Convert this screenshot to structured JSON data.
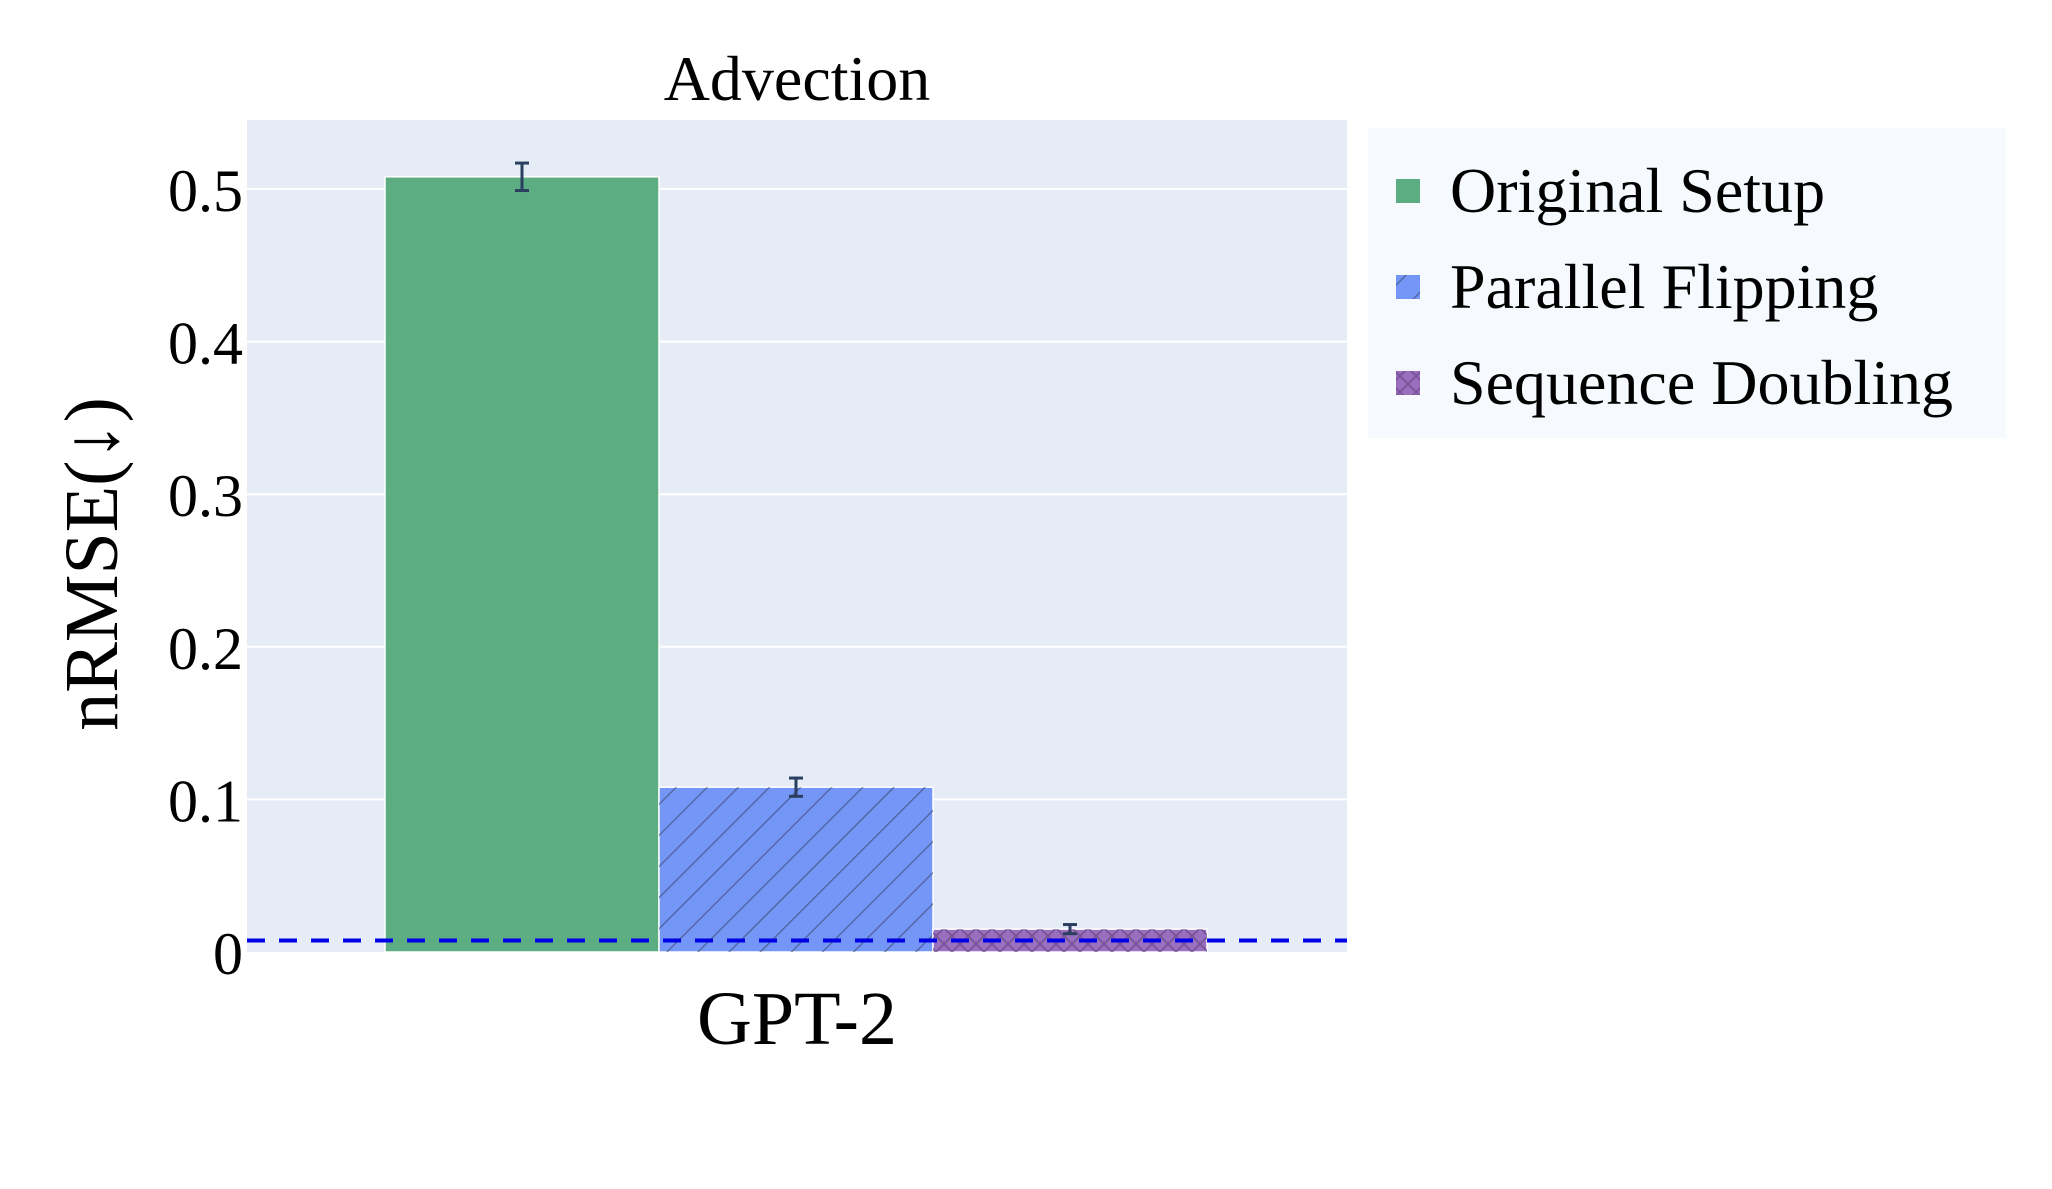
{
  "chart_data": {
    "type": "bar",
    "title": "Advection",
    "xlabel": "",
    "ylabel": "nRMSE(↓)",
    "categories": [
      "GPT-2"
    ],
    "ylim": [
      0,
      0.545
    ],
    "yticks": [
      0,
      0.1,
      0.2,
      0.3,
      0.4,
      0.5
    ],
    "ytick_labels": [
      "0",
      "0.1",
      "0.2",
      "0.3",
      "0.4",
      "0.5"
    ],
    "grid": true,
    "legend_position": "right",
    "reference_line": {
      "value": 0.0075,
      "color": "#0000e6",
      "style": "dashed"
    },
    "series": [
      {
        "name": "Original Setup",
        "values": [
          0.508
        ],
        "error": [
          0.009
        ],
        "color": "#5cad82",
        "pattern": "none"
      },
      {
        "name": "Parallel Flipping",
        "values": [
          0.108
        ],
        "error": [
          0.006
        ],
        "color": "#7396f7",
        "pattern": "diagonal"
      },
      {
        "name": "Sequence Doubling",
        "values": [
          0.015
        ],
        "error": [
          0.003
        ],
        "color": "#9b6fbf",
        "pattern": "crosshatch"
      }
    ]
  }
}
